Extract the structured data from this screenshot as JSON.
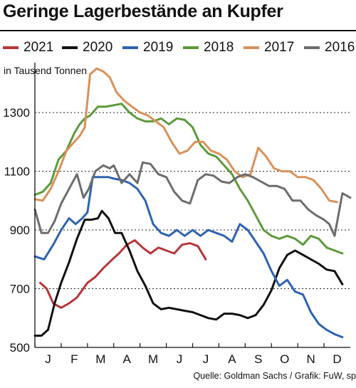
{
  "title": "Geringe Lagerbestände an Kupfer",
  "unit_label": "in Tausend Tonnen",
  "source": "Quelle: Goldman Sachs / Grafik: FuW, sp",
  "chart_data": {
    "type": "line",
    "ylabel": "in Tausend Tonnen",
    "ylim": [
      500,
      1470
    ],
    "yticks": [
      500,
      700,
      900,
      1100,
      1300
    ],
    "xlim": [
      0,
      12
    ],
    "categories": [
      "J",
      "F",
      "M",
      "A",
      "M",
      "J",
      "J",
      "A",
      "S",
      "O",
      "N",
      "D"
    ],
    "grid": true,
    "legend_position": "top",
    "series": [
      {
        "name": "2021",
        "color": "#b5363a",
        "x": [
          0.2,
          0.45,
          0.7,
          1.0,
          1.3,
          1.6,
          2.0,
          2.3,
          2.6,
          2.95,
          3.2,
          3.5,
          3.8,
          4.1,
          4.4,
          4.7,
          5.0,
          5.3,
          5.6,
          5.9,
          6.2,
          6.5
        ],
        "y": [
          720,
          700,
          650,
          635,
          650,
          670,
          720,
          740,
          770,
          800,
          820,
          850,
          865,
          840,
          820,
          840,
          830,
          820,
          850,
          855,
          845,
          800
        ]
      },
      {
        "name": "2020",
        "color": "#111111",
        "x": [
          0.0,
          0.25,
          0.5,
          0.75,
          1.0,
          1.3,
          1.6,
          1.9,
          2.15,
          2.4,
          2.55,
          2.8,
          3.05,
          3.3,
          3.6,
          3.9,
          4.2,
          4.5,
          4.8,
          5.1,
          5.4,
          5.7,
          6.0,
          6.3,
          6.6,
          6.9,
          7.2,
          7.5,
          7.8,
          8.1,
          8.4,
          8.7,
          9.0,
          9.3,
          9.6,
          9.9,
          10.2,
          10.5,
          10.8,
          11.1,
          11.4,
          11.7
        ],
        "y": [
          540,
          540,
          560,
          650,
          720,
          790,
          870,
          935,
          935,
          940,
          965,
          940,
          890,
          890,
          830,
          760,
          710,
          650,
          630,
          635,
          630,
          625,
          620,
          610,
          600,
          595,
          615,
          615,
          610,
          600,
          610,
          645,
          695,
          770,
          815,
          830,
          815,
          800,
          785,
          765,
          760,
          715
        ]
      },
      {
        "name": "2019",
        "color": "#2f63b0",
        "x": [
          0.0,
          0.35,
          0.7,
          1.0,
          1.3,
          1.55,
          1.8,
          2.0,
          2.2,
          2.5,
          2.8,
          3.0,
          3.3,
          3.6,
          3.9,
          4.2,
          4.5,
          4.8,
          5.1,
          5.4,
          5.7,
          6.0,
          6.3,
          6.6,
          6.9,
          7.2,
          7.5,
          7.8,
          8.1,
          8.4,
          8.7,
          9.0,
          9.3,
          9.6,
          9.9,
          10.2,
          10.5,
          10.8,
          11.1,
          11.4,
          11.7
        ],
        "y": [
          810,
          800,
          850,
          900,
          940,
          920,
          940,
          960,
          1080,
          1080,
          1080,
          1075,
          1070,
          1060,
          1040,
          1000,
          920,
          890,
          880,
          900,
          880,
          900,
          880,
          900,
          890,
          880,
          860,
          920,
          900,
          860,
          820,
          760,
          710,
          730,
          690,
          680,
          620,
          580,
          560,
          545,
          535
        ]
      },
      {
        "name": "2018",
        "color": "#5c9a3a",
        "x": [
          0.0,
          0.3,
          0.6,
          0.9,
          1.2,
          1.5,
          1.7,
          1.9,
          2.1,
          2.4,
          2.7,
          3.0,
          3.3,
          3.6,
          3.9,
          4.2,
          4.5,
          4.8,
          5.1,
          5.4,
          5.7,
          6.0,
          6.3,
          6.6,
          6.9,
          7.2,
          7.5,
          7.8,
          8.1,
          8.4,
          8.7,
          9.0,
          9.3,
          9.6,
          9.9,
          10.2,
          10.5,
          10.8,
          11.1,
          11.4,
          11.7
        ],
        "y": [
          1020,
          1030,
          1060,
          1140,
          1170,
          1230,
          1260,
          1280,
          1290,
          1320,
          1320,
          1325,
          1330,
          1300,
          1280,
          1270,
          1270,
          1280,
          1260,
          1280,
          1275,
          1250,
          1190,
          1160,
          1150,
          1120,
          1090,
          1040,
          1000,
          950,
          900,
          880,
          870,
          880,
          870,
          850,
          880,
          870,
          840,
          830,
          820
        ]
      },
      {
        "name": "2017",
        "color": "#d9915a",
        "x": [
          0.0,
          0.3,
          0.6,
          0.9,
          1.2,
          1.5,
          1.7,
          1.9,
          2.1,
          2.35,
          2.6,
          2.85,
          3.1,
          3.4,
          3.7,
          4.0,
          4.3,
          4.6,
          4.9,
          5.2,
          5.5,
          5.8,
          6.1,
          6.4,
          6.7,
          7.0,
          7.3,
          7.6,
          7.9,
          8.2,
          8.5,
          8.8,
          9.1,
          9.4,
          9.7,
          10.0,
          10.3,
          10.6,
          10.9,
          11.2,
          11.5
        ],
        "y": [
          1005,
          1000,
          1040,
          1100,
          1170,
          1200,
          1220,
          1250,
          1430,
          1450,
          1440,
          1420,
          1370,
          1340,
          1320,
          1300,
          1290,
          1270,
          1250,
          1200,
          1160,
          1170,
          1200,
          1200,
          1170,
          1160,
          1140,
          1100,
          1080,
          1090,
          1180,
          1150,
          1110,
          1100,
          1100,
          1080,
          1080,
          1070,
          1040,
          1000,
          995
        ]
      },
      {
        "name": "2016",
        "color": "#6d6d6d",
        "x": [
          0.0,
          0.25,
          0.5,
          0.75,
          1.0,
          1.3,
          1.6,
          1.85,
          2.05,
          2.3,
          2.6,
          2.85,
          3.0,
          3.3,
          3.6,
          3.9,
          4.1,
          4.4,
          4.7,
          5.0,
          5.3,
          5.6,
          5.9,
          6.2,
          6.5,
          6.8,
          7.1,
          7.4,
          7.7,
          8.0,
          8.3,
          8.6,
          8.9,
          9.2,
          9.5,
          9.8,
          10.1,
          10.4,
          10.7,
          11.0,
          11.2,
          11.4,
          11.7,
          12.0
        ],
        "y": [
          970,
          890,
          890,
          930,
          990,
          1040,
          1090,
          1010,
          1040,
          1100,
          1120,
          1110,
          1120,
          1060,
          1090,
          1060,
          1130,
          1125,
          1090,
          1080,
          1030,
          1000,
          990,
          1070,
          1090,
          1085,
          1065,
          1060,
          1080,
          1090,
          1080,
          1065,
          1050,
          1050,
          1040,
          1000,
          1000,
          970,
          950,
          935,
          920,
          880,
          1025,
          1010
        ]
      }
    ]
  }
}
